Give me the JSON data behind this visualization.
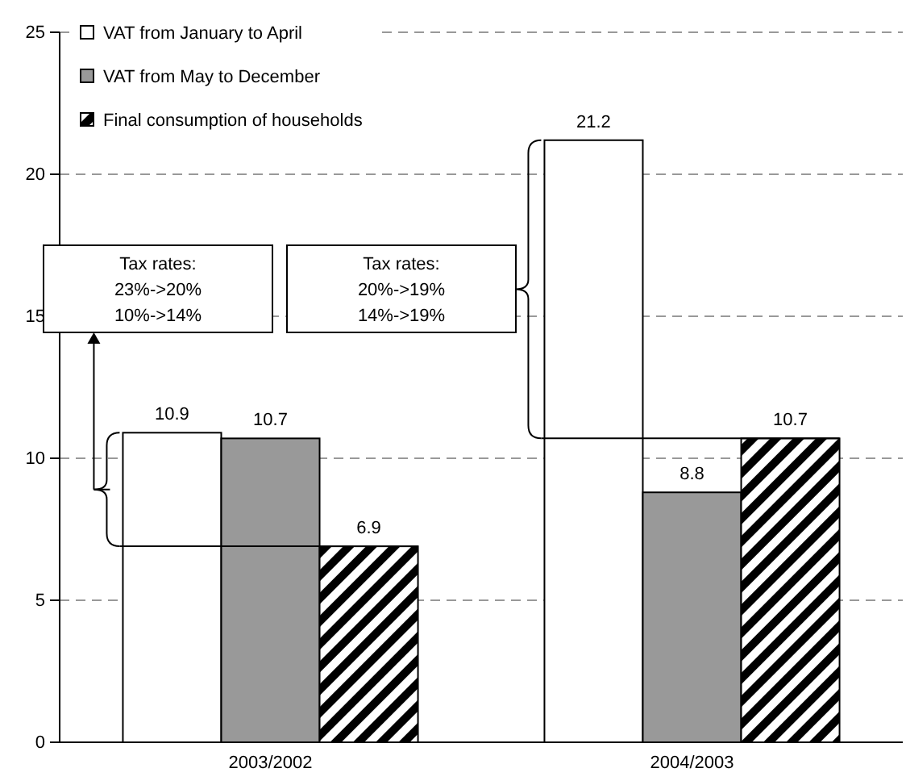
{
  "chart_data": {
    "type": "bar",
    "categories": [
      "2003/2002",
      "2004/2003"
    ],
    "series": [
      {
        "name": "VAT from January to April",
        "color": "#ffffff",
        "values": [
          10.9,
          21.2
        ]
      },
      {
        "name": "VAT from May to December",
        "color": "#999999",
        "values": [
          10.7,
          8.8
        ]
      },
      {
        "name": "Final consumption of households",
        "color": "#000000",
        "values": [
          6.9,
          10.7
        ]
      }
    ],
    "ylim": [
      0,
      25
    ],
    "yticks": [
      0,
      5,
      10,
      15,
      20,
      25
    ],
    "grid": "y",
    "legend": "top left",
    "data_labels": true,
    "annotations": [
      "Tax rates:\n23%->20%\n10%->14%",
      "Tax rates:\n20%->19%\n14%->19%"
    ]
  }
}
